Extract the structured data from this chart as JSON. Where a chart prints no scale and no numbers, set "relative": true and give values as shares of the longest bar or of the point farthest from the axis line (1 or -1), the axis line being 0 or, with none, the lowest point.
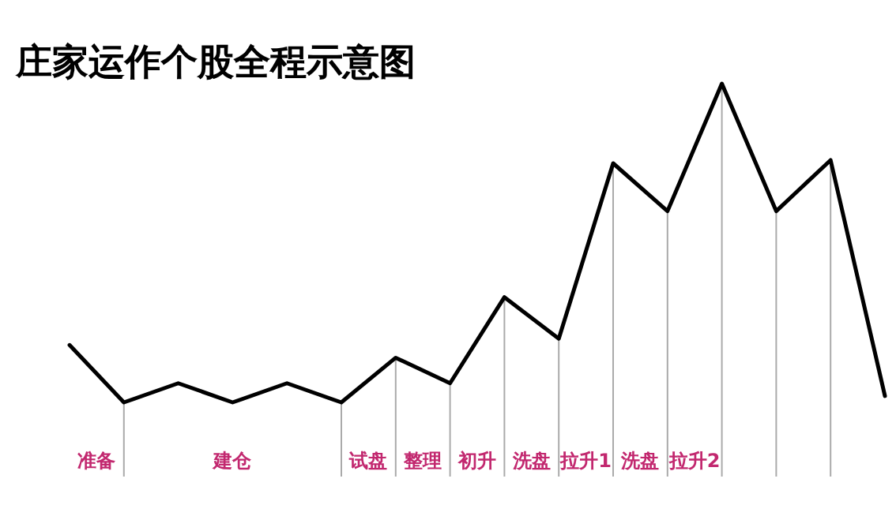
{
  "chart_data": {
    "type": "line",
    "title": "庄家运作个股全程示意图",
    "relative": true,
    "categories": [
      null,
      null,
      null,
      null,
      null,
      null,
      null,
      null,
      null,
      null,
      null,
      null,
      null,
      null,
      null,
      null
    ],
    "series": [
      {
        "color": "#000000",
        "values": [
          0.18,
          0,
          0.06,
          0,
          0.06,
          0,
          0.14,
          0.06,
          0.33,
          0.2,
          0.75,
          0.6,
          1,
          0.6,
          0.76,
          0.02
        ]
      }
    ],
    "annotations": [
      "准备",
      "建仓",
      "试盘",
      "整理",
      "初升",
      "洗盘",
      "拉升1",
      "洗盘",
      "拉升2"
    ],
    "grid": "x",
    "marker": "none",
    "line_style": "solid"
  }
}
